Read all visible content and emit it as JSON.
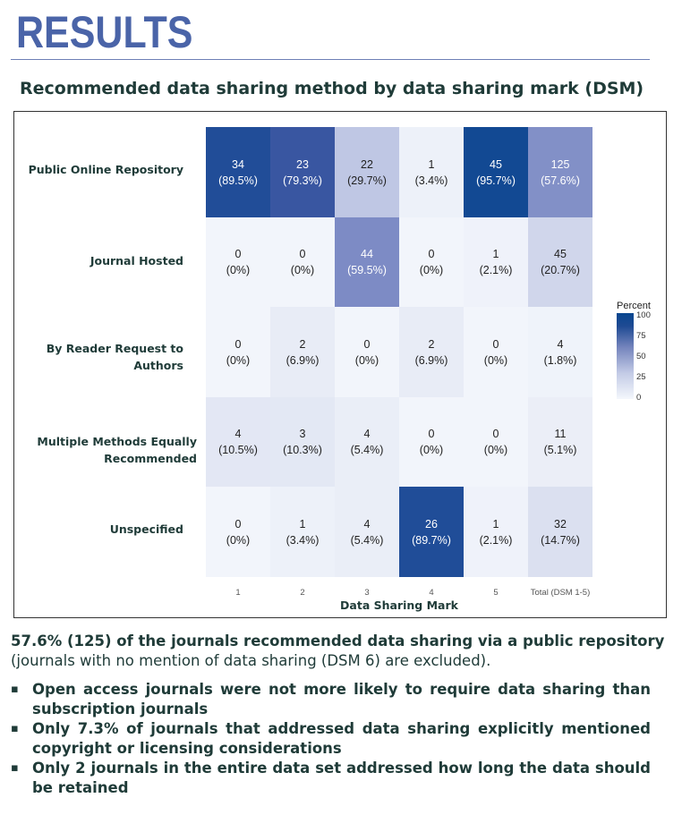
{
  "header": {
    "title": "RESULTS",
    "subtitle": "Recommended data sharing method by data sharing mark (DSM)"
  },
  "colors": {
    "heading": "#4a64a8",
    "text": "#1f3b38",
    "scale_low": "#f4f7fc",
    "scale_high": "#08468f"
  },
  "chart_data": {
    "type": "heatmap",
    "title": "",
    "xlabel": "Data Sharing Mark",
    "ylabel": "",
    "categories": [
      "1",
      "2",
      "3",
      "4",
      "5",
      "Total (DSM 1-5)"
    ],
    "rows": [
      "Public Online Repository",
      "Journal Hosted",
      "By Reader Request to Authors",
      "Multiple Methods Equally Recommended",
      "Unspecified"
    ],
    "counts": [
      [
        34,
        23,
        22,
        1,
        45,
        125
      ],
      [
        0,
        0,
        44,
        0,
        1,
        45
      ],
      [
        0,
        2,
        0,
        2,
        0,
        4
      ],
      [
        4,
        3,
        4,
        0,
        0,
        11
      ],
      [
        0,
        1,
        4,
        26,
        1,
        32
      ]
    ],
    "percent_labels": [
      [
        "(89.5%)",
        "(79.3%)",
        "(29.7%)",
        "(3.4%)",
        "(95.7%)",
        "(57.6%)"
      ],
      [
        "(0%)",
        "(0%)",
        "(59.5%)",
        "(0%)",
        "(2.1%)",
        "(20.7%)"
      ],
      [
        "(0%)",
        "(6.9%)",
        "(0%)",
        "(6.9%)",
        "(0%)",
        "(1.8%)"
      ],
      [
        "(10.5%)",
        "(10.3%)",
        "(5.4%)",
        "(0%)",
        "(0%)",
        "(5.1%)"
      ],
      [
        "(0%)",
        "(3.4%)",
        "(5.4%)",
        "(89.7%)",
        "(2.1%)",
        "(14.7%)"
      ]
    ],
    "percent": [
      [
        89.5,
        79.3,
        29.7,
        3.4,
        95.7,
        57.6
      ],
      [
        0,
        0,
        59.5,
        0,
        2.1,
        20.7
      ],
      [
        0,
        6.9,
        0,
        6.9,
        0,
        1.8
      ],
      [
        10.5,
        10.3,
        5.4,
        0,
        0,
        5.1
      ],
      [
        0,
        3.4,
        5.4,
        89.7,
        2.1,
        14.7
      ]
    ],
    "legend": {
      "title": "Percent",
      "ticks": [
        "0",
        "25",
        "50",
        "75",
        "100"
      ],
      "range": [
        0,
        100
      ],
      "placement": "right"
    },
    "grid": false
  },
  "summary": {
    "lead_bold": "57.6% (125) of the journals recommended data sharing via a public repository",
    "lead_normal": "(journals with no mention of data sharing (DSM 6) are excluded).",
    "bullets": [
      "Open access journals were not more likely to require data sharing than subscription journals",
      "Only 7.3% of journals that addressed data sharing explicitly mentioned copyright or licensing considerations",
      "Only 2 journals in the entire data set addressed how long the data should be retained"
    ],
    "bullet_mark": "▪"
  }
}
